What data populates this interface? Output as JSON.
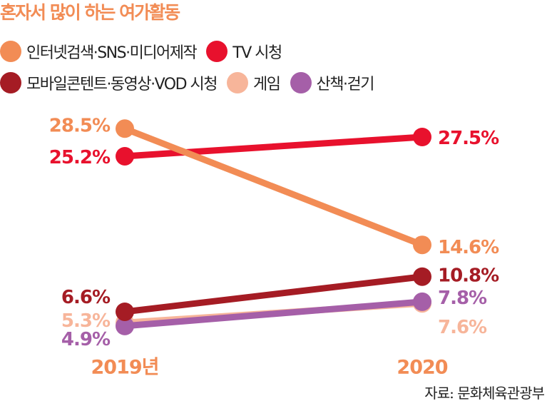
{
  "title": "혼자서 많이 하는 여가활동",
  "title_color": "#f28c55",
  "source": "자료: 문화체육관광부",
  "chart_data": {
    "type": "line",
    "x": [
      "2019년",
      "2020"
    ],
    "series": [
      {
        "name": "인터넷검색·SNS·미디어제작",
        "color": "#f28c55",
        "values": [
          28.5,
          14.6
        ],
        "labels": [
          "28.5%",
          "14.6%"
        ]
      },
      {
        "name": "TV 시청",
        "color": "#e8112d",
        "values": [
          25.2,
          27.5
        ],
        "labels": [
          "25.2%",
          "27.5%"
        ]
      },
      {
        "name": "모바일콘텐트·동영상·VOD 시청",
        "color": "#a51c24",
        "values": [
          6.6,
          10.8
        ],
        "labels": [
          "6.6%",
          "10.8%"
        ]
      },
      {
        "name": "게임",
        "color": "#f7b59a",
        "values": [
          5.3,
          7.6
        ],
        "labels": [
          "5.3%",
          "7.6%"
        ]
      },
      {
        "name": "산책·걷기",
        "color": "#a55fa8",
        "values": [
          4.9,
          7.8
        ],
        "labels": [
          "4.9%",
          "7.8%"
        ]
      }
    ],
    "legend_placement": "top",
    "grid": false
  }
}
